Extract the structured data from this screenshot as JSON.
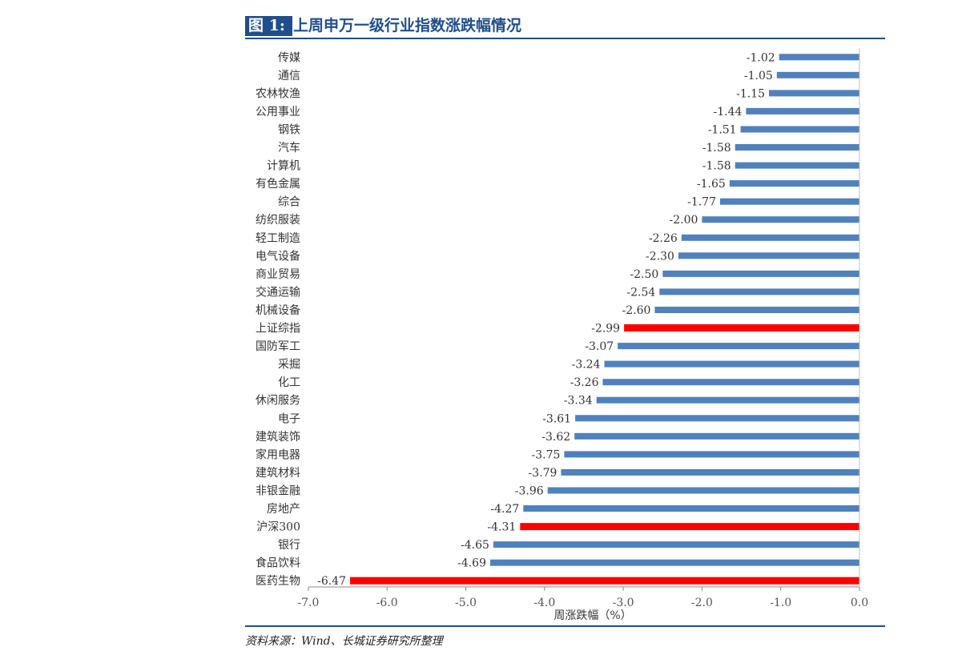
{
  "header": {
    "figure_label": "图 1:",
    "title": "上周申万一级行业指数涨跌幅情况"
  },
  "footer": {
    "source": "资料来源：Wind、长城证券研究所整理"
  },
  "colors": {
    "bar_default": "#4f81bd",
    "bar_highlight": "#ff0000",
    "accent": "#1f4e8c"
  },
  "chart_data": {
    "type": "bar",
    "orientation": "horizontal",
    "title": "",
    "xlabel": "周涨跌幅（%）",
    "ylabel": "",
    "xlim": [
      -7.0,
      0.0
    ],
    "xticks": [
      "-7.0",
      "-6.0",
      "-5.0",
      "-4.0",
      "-3.0",
      "-2.0",
      "-1.0",
      "0.0"
    ],
    "grid": false,
    "legend": "none",
    "categories": [
      "传媒",
      "通信",
      "农林牧渔",
      "公用事业",
      "钢铁",
      "汽车",
      "计算机",
      "有色金属",
      "综合",
      "纺织服装",
      "轻工制造",
      "电气设备",
      "商业贸易",
      "交通运输",
      "机械设备",
      "上证综指",
      "国防军工",
      "采掘",
      "化工",
      "休闲服务",
      "电子",
      "建筑装饰",
      "家用电器",
      "建筑材料",
      "非银金融",
      "房地产",
      "沪深300",
      "银行",
      "食品饮料",
      "医药生物"
    ],
    "values": [
      -1.02,
      -1.05,
      -1.15,
      -1.44,
      -1.51,
      -1.58,
      -1.58,
      -1.65,
      -1.77,
      -2.0,
      -2.26,
      -2.3,
      -2.5,
      -2.54,
      -2.6,
      -2.99,
      -3.07,
      -3.24,
      -3.26,
      -3.34,
      -3.61,
      -3.62,
      -3.75,
      -3.79,
      -3.96,
      -4.27,
      -4.31,
      -4.65,
      -4.69,
      -6.47
    ],
    "value_labels": [
      "-1.02",
      "-1.05",
      "-1.15",
      "-1.44",
      "-1.51",
      "-1.58",
      "-1.58",
      "-1.65",
      "-1.77",
      "-2.00",
      "-2.26",
      "-2.30",
      "-2.50",
      "-2.54",
      "-2.60",
      "-2.99",
      "-3.07",
      "-3.24",
      "-3.26",
      "-3.34",
      "-3.61",
      "-3.62",
      "-3.75",
      "-3.79",
      "-3.96",
      "-4.27",
      "-4.31",
      "-4.65",
      "-4.69",
      "-6.47"
    ],
    "highlighted": [
      "上证综指",
      "沪深300",
      "医药生物"
    ]
  }
}
